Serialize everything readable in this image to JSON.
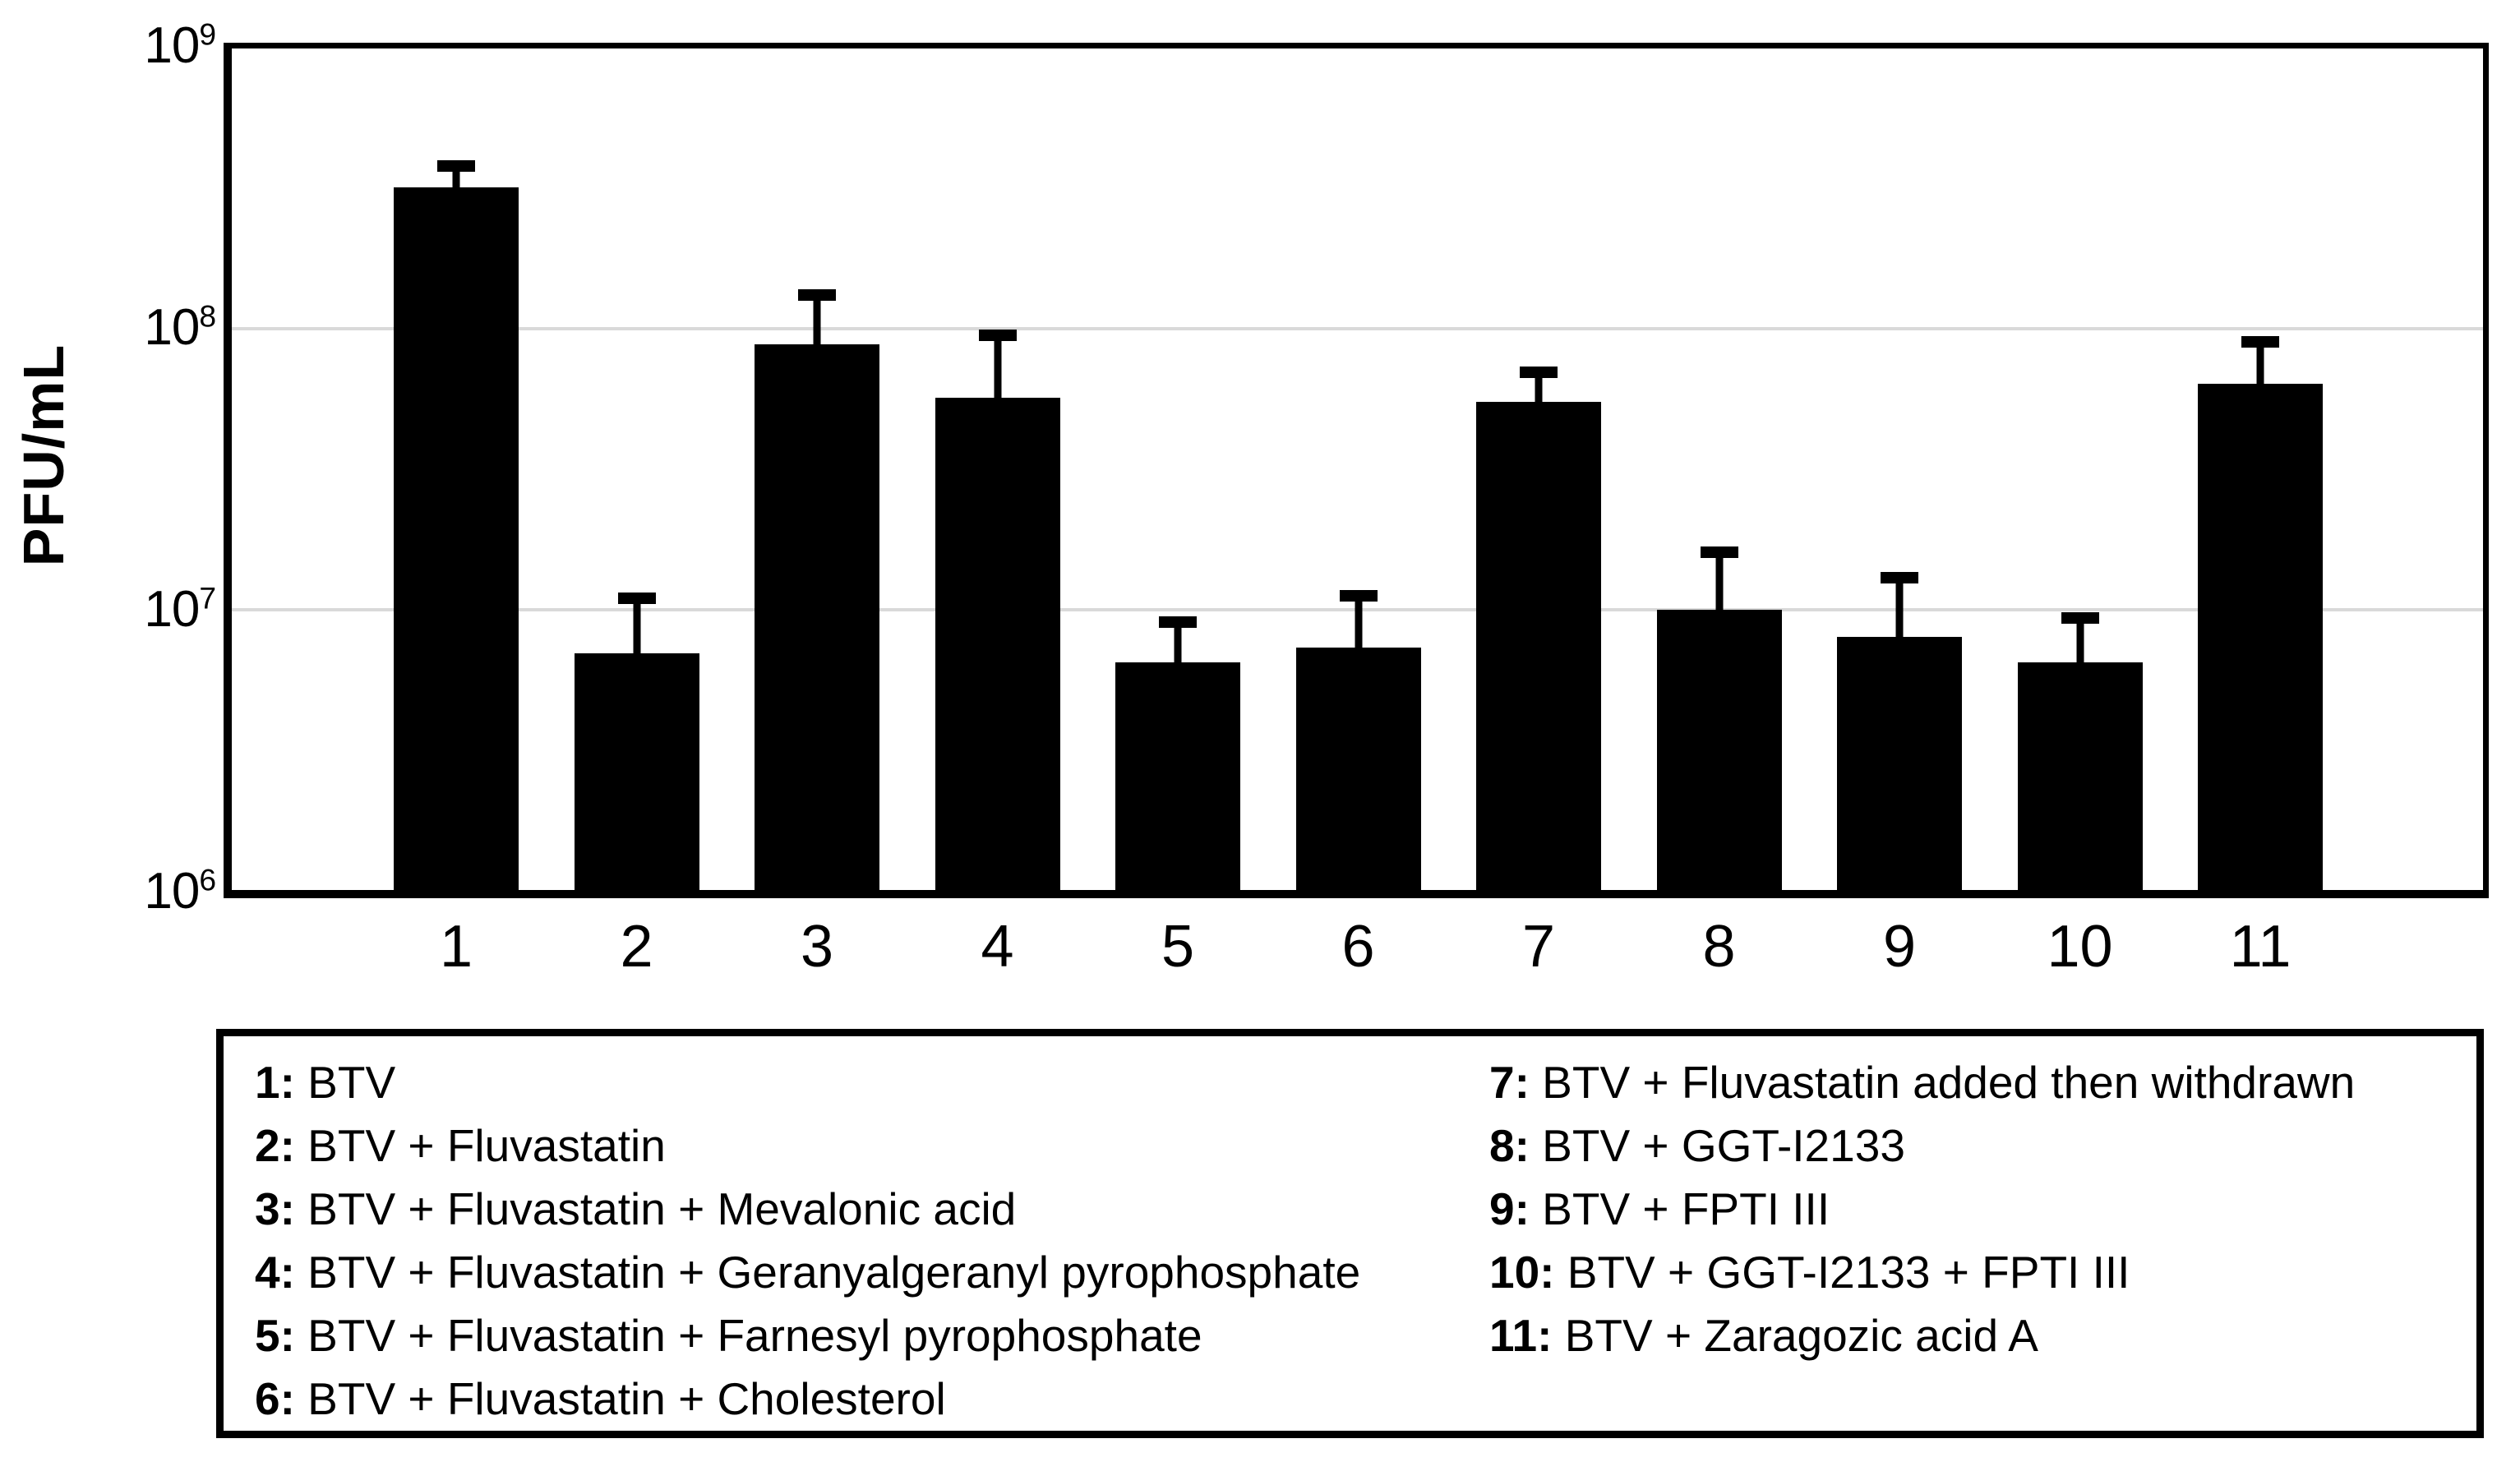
{
  "chart_data": {
    "type": "bar",
    "title": "",
    "xlabel": "",
    "ylabel": "PFU/mL",
    "yscale": "log",
    "ylim": [
      1000000,
      1000000000
    ],
    "y_tick_exponents": [
      9,
      8,
      7,
      6
    ],
    "grid": "horizontal, at 10^8 and 10^7",
    "legend_position": "boxed panel below plot, two columns",
    "bar_color": "#000000",
    "gridline_color": "#d9d9d9",
    "categories": [
      "1",
      "2",
      "3",
      "4",
      "5",
      "6",
      "7",
      "8",
      "9",
      "10",
      "11"
    ],
    "values": [
      320000000,
      7000000,
      88000000,
      57000000,
      6500000,
      7300000,
      55000000,
      10000000,
      8000000,
      6500000,
      64000000
    ],
    "error_upper": [
      380000000,
      11000000,
      132000000,
      95000000,
      9000000,
      11200000,
      70000000,
      16000000,
      13000000,
      9300000,
      90000000
    ],
    "legend": {
      "left_column": [
        {
          "number": "1:",
          "text": "BTV"
        },
        {
          "number": "2:",
          "text": "BTV + Fluvastatin"
        },
        {
          "number": "3:",
          "text": "BTV + Fluvastatin + Mevalonic acid"
        },
        {
          "number": "4:",
          "text": "BTV + Fluvastatin + Geranyalgeranyl pyrophosphate"
        },
        {
          "number": "5:",
          "text": "BTV + Fluvastatin + Farnesyl pyrophosphate"
        },
        {
          "number": "6:",
          "text": "BTV + Fluvastatin + Cholesterol"
        }
      ],
      "right_column": [
        {
          "number": "7:",
          "text": "BTV + Fluvastatin added then withdrawn"
        },
        {
          "number": "8:",
          "text": "BTV + GGT-I2133"
        },
        {
          "number": "9:",
          "text": "BTV + FPTI III"
        },
        {
          "number": "10:",
          "text": "BTV + GGT-I2133 + FPTI III"
        },
        {
          "number": "11:",
          "text": "BTV + Zaragozic acid A"
        }
      ]
    }
  }
}
